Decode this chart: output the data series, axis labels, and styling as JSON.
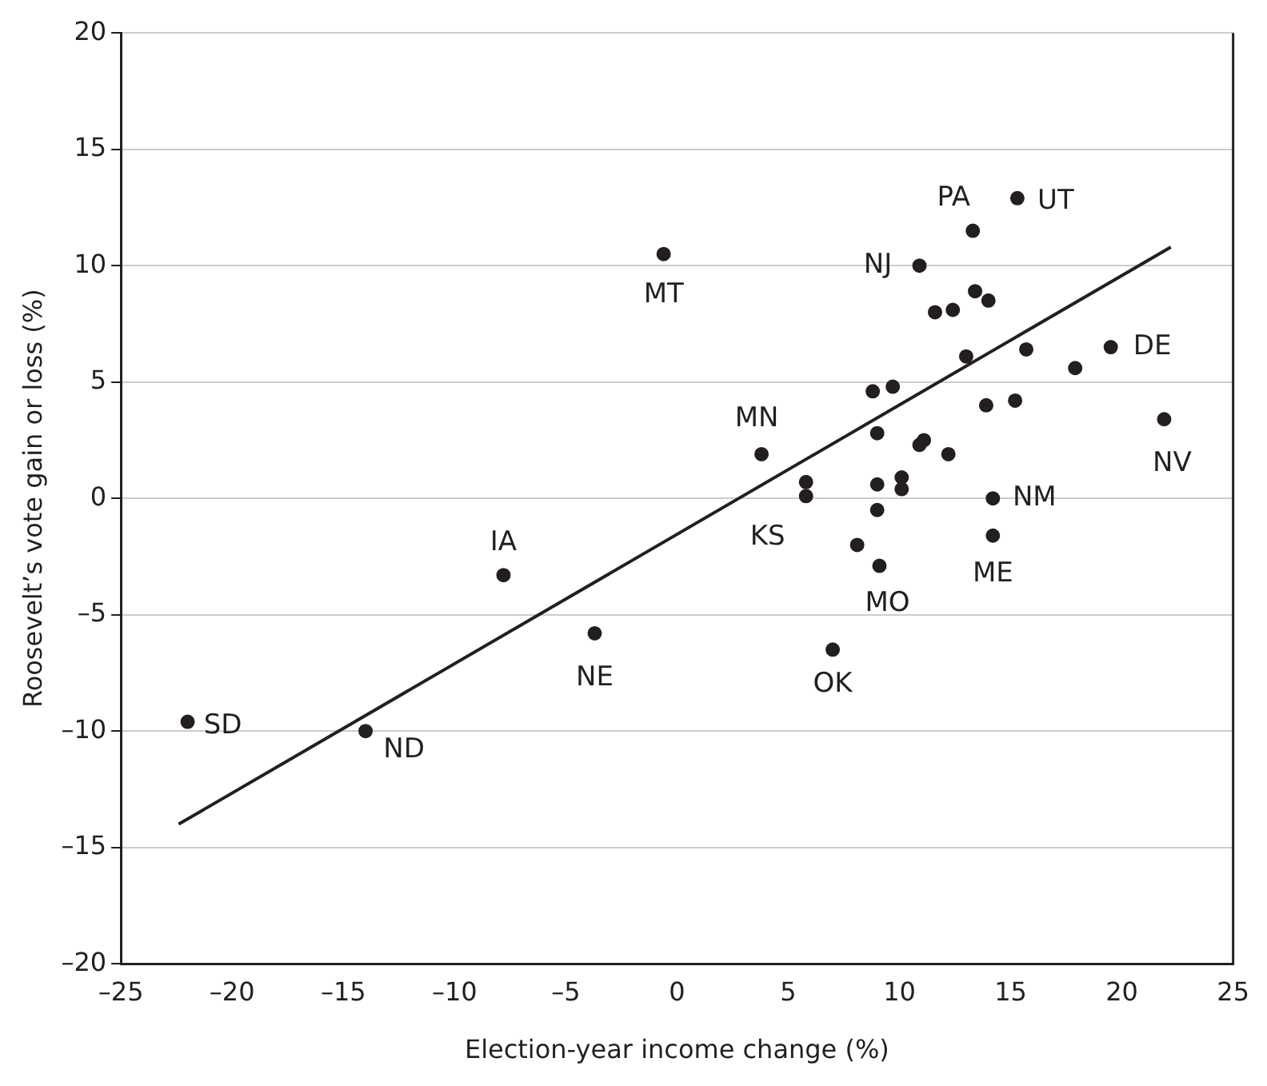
{
  "chart_data": {
    "type": "scatter",
    "xlabel": "Election-year income change (%)",
    "ylabel": "Roosevelt’s vote gain or loss (%)",
    "xlim": [
      -25,
      25
    ],
    "xticks": [
      {
        "value": -25,
        "label": "–25"
      },
      {
        "value": -20,
        "label": "–20"
      },
      {
        "value": -15,
        "label": "–15"
      },
      {
        "value": -10,
        "label": "–10"
      },
      {
        "value": -5,
        "label": "–5"
      },
      0,
      5,
      10,
      15,
      20,
      25
    ],
    "ylim": [
      -20,
      20
    ],
    "yticks": [
      {
        "value": -20,
        "label": "–20"
      },
      {
        "value": -15,
        "label": "–15"
      },
      {
        "value": -10,
        "label": "–10"
      },
      {
        "value": -5,
        "label": "–5"
      },
      0,
      5,
      10,
      15,
      20
    ],
    "grid": "y",
    "legend": false,
    "marker": "circle",
    "series": [
      {
        "color": "#231f20",
        "x": [
          -22.0,
          -14.0,
          -7.8,
          -3.7,
          -0.6,
          3.8,
          5.8,
          5.8,
          9.0,
          9.0,
          8.1,
          9.1,
          10.1,
          10.1,
          14.2,
          14.2,
          7.0,
          10.9,
          11.1,
          12.2,
          15.3,
          13.3,
          10.9,
          13.4,
          14.0,
          11.6,
          12.4,
          13.0,
          15.7,
          17.9,
          19.5,
          8.8,
          9.7,
          13.9,
          15.2,
          21.9,
          9.0
        ],
        "values": [
          -9.6,
          -10.0,
          -3.3,
          -5.8,
          10.5,
          1.9,
          0.7,
          0.1,
          0.6,
          -0.5,
          -2.0,
          -2.9,
          0.9,
          0.4,
          0.0,
          -1.6,
          -6.5,
          2.3,
          2.5,
          1.9,
          12.9,
          11.5,
          10.0,
          8.9,
          8.5,
          8.0,
          8.1,
          6.1,
          6.4,
          5.6,
          6.5,
          4.6,
          4.8,
          4.0,
          4.2,
          3.4,
          2.8
        ]
      },
      {
        "type": "line",
        "color": "#231f20",
        "line_style": "solid",
        "marker": "none",
        "x": [
          -22.4,
          22.2
        ],
        "values": [
          -14.0,
          10.8
        ]
      }
    ],
    "annotations": [
      {
        "text": "SD",
        "x": -22.0,
        "y": -9.6
      },
      {
        "text": "ND",
        "x": -14.0,
        "y": -10.0
      },
      {
        "text": "IA",
        "x": -7.8,
        "y": -3.3
      },
      {
        "text": "NE",
        "x": -3.7,
        "y": -5.8
      },
      {
        "text": "MT",
        "x": -0.6,
        "y": 10.5
      },
      {
        "text": "MN",
        "x": 3.8,
        "y": 1.9
      },
      {
        "text": "KS",
        "x": 5.8,
        "y": 0.1
      },
      {
        "text": "MO",
        "x": 9.1,
        "y": -2.9
      },
      {
        "text": "OK",
        "x": 7.0,
        "y": -6.5
      },
      {
        "text": "ME",
        "x": 14.2,
        "y": -1.6
      },
      {
        "text": "NM",
        "x": 14.2,
        "y": 0.0
      },
      {
        "text": "NV",
        "x": 21.9,
        "y": 3.4
      },
      {
        "text": "DE",
        "x": 19.5,
        "y": 6.5
      },
      {
        "text": "UT",
        "x": 15.3,
        "y": 12.9
      },
      {
        "text": "PA",
        "x": 13.3,
        "y": 11.5
      },
      {
        "text": "NJ",
        "x": 10.9,
        "y": 10.0
      }
    ]
  }
}
